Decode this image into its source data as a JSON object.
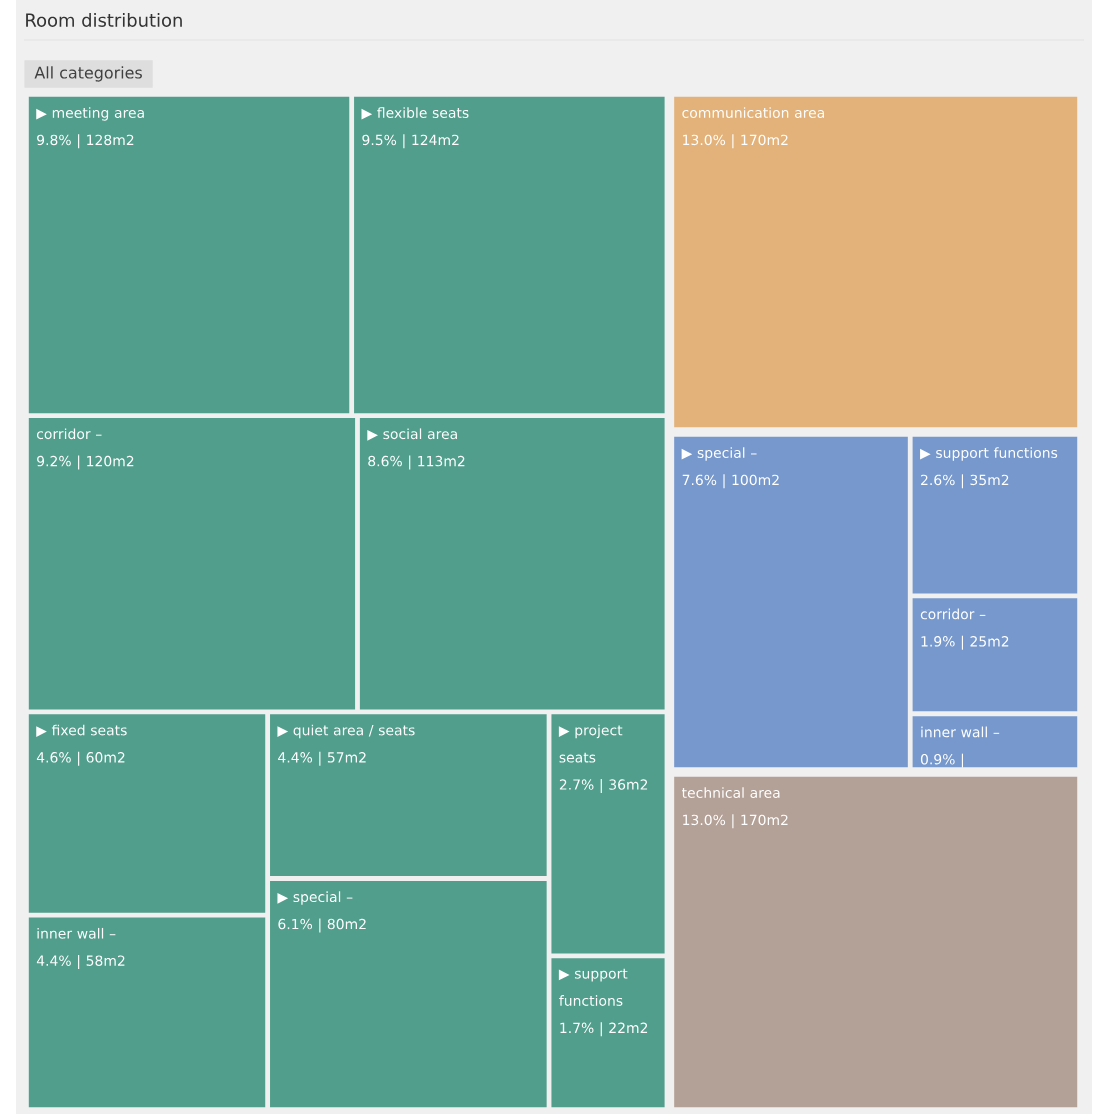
{
  "chart_data": {
    "type": "other",
    "title": "Room distribution",
    "annotations": [
      "All categories"
    ],
    "categories": [
      "▶ meeting area",
      "▶ flexible seats",
      "corridor –",
      "▶ social area",
      "▶ fixed seats",
      "inner wall –",
      "▶ quiet area / seats",
      "▶ special –",
      "▶ project seats",
      "▶ support functions",
      "communication area",
      "▶ special –",
      "▶ support functions",
      "corridor –",
      "inner wall –",
      "technical area"
    ],
    "values": [
      9.8,
      9.5,
      9.2,
      8.6,
      4.6,
      4.4,
      4.4,
      6.1,
      2.7,
      1.7,
      13.0,
      7.6,
      2.6,
      1.9,
      0.9,
      13.0
    ],
    "value_labels": [
      "9.8% | 128m2",
      "9.5% | 124m2",
      "9.2% | 120m2",
      "8.6% | 113m2",
      "4.6% | 60m2",
      "4.4% | 58m2",
      "4.4% | 57m2",
      "6.1% | 80m2",
      "2.7% | 36m2",
      "1.7% | 22m2",
      "13.0% | 170m2",
      "7.6% | 100m2",
      "2.6% | 35m2",
      "1.9% | 25m2",
      "0.9% |",
      "13.0% | 170m2"
    ],
    "colors": [
      "#529e8c",
      "#529e8c",
      "#529e8c",
      "#529e8c",
      "#529e8c",
      "#529e8c",
      "#529e8c",
      "#529e8c",
      "#529e8c",
      "#529e8c",
      "#e2b27a",
      "#7698cc",
      "#7698cc",
      "#7698cc",
      "#7698cc",
      "#b3a097"
    ]
  }
}
